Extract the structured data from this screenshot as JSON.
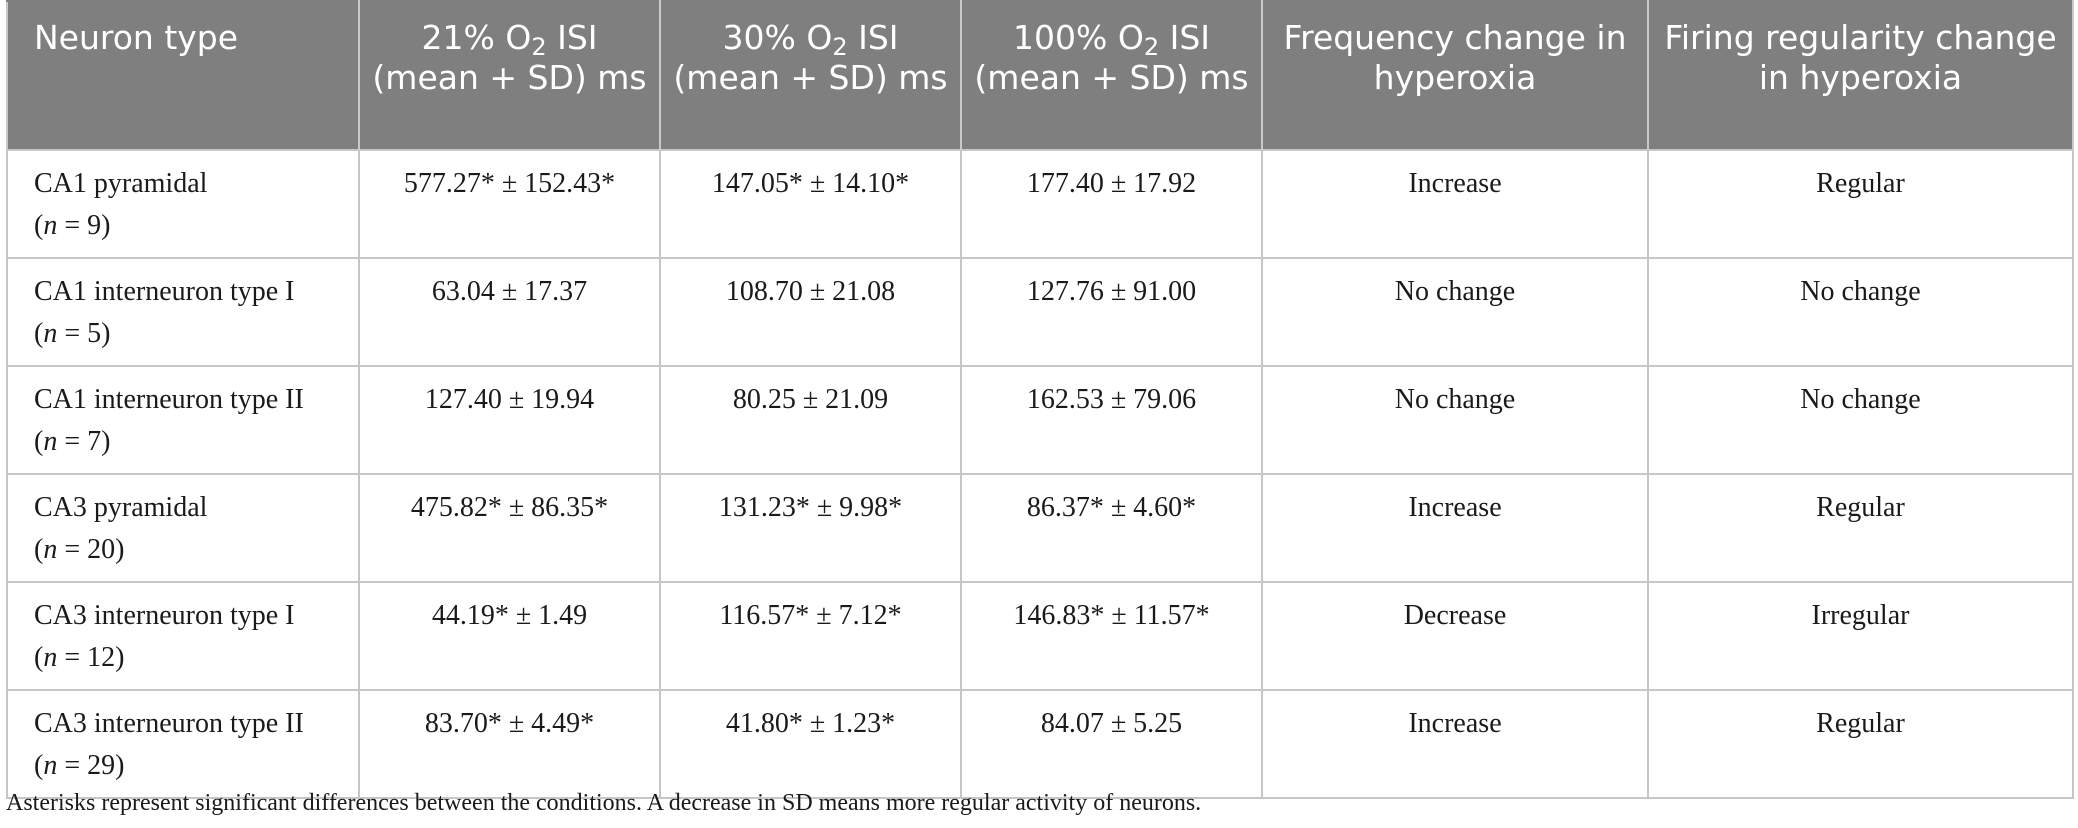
{
  "table": {
    "headers": [
      {
        "pre": "Neuron type",
        "sub": "",
        "post": ""
      },
      {
        "pre": "21% O",
        "sub": "2",
        "post": " ISI (mean + SD) ms"
      },
      {
        "pre": "30% O",
        "sub": "2",
        "post": " ISI (mean + SD) ms"
      },
      {
        "pre": "100% O",
        "sub": "2",
        "post": " ISI (mean + SD) ms"
      },
      {
        "pre": "Frequency change in hyperoxia",
        "sub": "",
        "post": ""
      },
      {
        "pre": "Firing regularity change in hyperoxia",
        "sub": "",
        "post": ""
      }
    ],
    "rows": [
      {
        "name": "CA1 pyramidal",
        "n_label": "n",
        "n_value": " = 9",
        "o21": "577.27* ± 152.43*",
        "o30": "147.05* ± 14.10*",
        "o100": "177.40 ± 17.92",
        "frequency": "Increase",
        "regularity": "Regular"
      },
      {
        "name": "CA1 interneuron type I",
        "n_label": "n",
        "n_value": " = 5",
        "o21": "63.04 ± 17.37",
        "o30": "108.70 ± 21.08",
        "o100": "127.76 ± 91.00",
        "frequency": "No change",
        "regularity": "No change"
      },
      {
        "name": "CA1 interneuron type II",
        "n_label": "n",
        "n_value": " = 7",
        "o21": "127.40 ± 19.94",
        "o30": "80.25 ± 21.09",
        "o100": "162.53 ± 79.06",
        "frequency": "No change",
        "regularity": "No change"
      },
      {
        "name": "CA3 pyramidal",
        "n_label": "n",
        "n_value": " = 20",
        "o21": "475.82* ± 86.35*",
        "o30": "131.23* ± 9.98*",
        "o100": "86.37* ± 4.60*",
        "frequency": "Increase",
        "regularity": "Regular"
      },
      {
        "name": "CA3 interneuron type I",
        "n_label": "n",
        "n_value": " = 12",
        "o21": "44.19* ± 1.49",
        "o30": "116.57* ± 7.12*",
        "o100": "146.83* ± 11.57*",
        "frequency": "Decrease",
        "regularity": "Irregular"
      },
      {
        "name": "CA3 interneuron type II",
        "n_label": "n",
        "n_value": " = 29",
        "o21": "83.70* ± 4.49*",
        "o30": "41.80* ± 1.23*",
        "o100": "84.07 ± 5.25",
        "frequency": "Increase",
        "regularity": "Regular"
      }
    ]
  },
  "footnote": "Asterisks represent significant differences between the conditions. A decrease in SD means more regular activity of neurons.",
  "colors": {
    "header_bg": "#7f7f7f",
    "header_text": "#ffffff",
    "grid": "#c6c6c6",
    "body_text": "#1a1a1a"
  }
}
